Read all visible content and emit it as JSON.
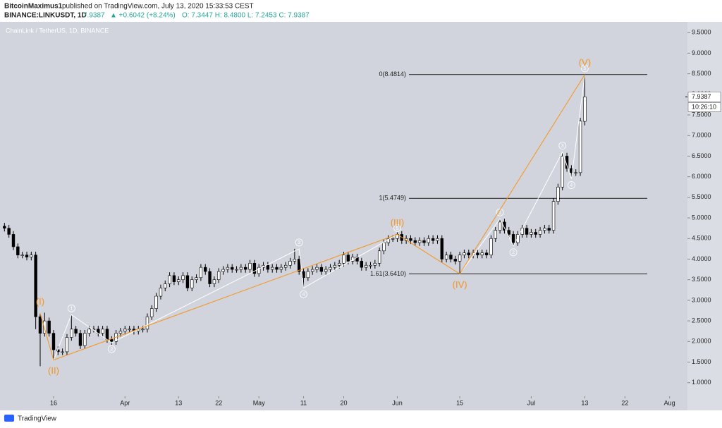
{
  "header": {
    "author": "BitcoinMaximus1",
    "published": "published on TradingView.com, July 13, 2020 15:33:53 CEST",
    "symbol": "BINANCE:LINKUSDT, 1D",
    "price": "7.9387",
    "change": "▲ +0.6042 (+8.24%)",
    "ohlc": "O: 7.3447  H: 8.4800  L: 7.2453  C: 7.9387"
  },
  "footer": {
    "brand": "TradingView"
  },
  "chart_data": {
    "type": "candlestick",
    "title": "ChainLink / TetherUS, 1D, BINANCE",
    "up_color": "#ffffff",
    "down_color": "#000000",
    "wave_color": "#f7931a",
    "subwave_color": "#ffffff",
    "background": "#d1d4dc",
    "xlim": [
      "03-04",
      "08-05"
    ],
    "xticks": [
      {
        "value": "03-16",
        "label": "16"
      },
      {
        "value": "04-01",
        "label": "Apr"
      },
      {
        "value": "04-13",
        "label": "13"
      },
      {
        "value": "04-22",
        "label": "22"
      },
      {
        "value": "05-01",
        "label": "May"
      },
      {
        "value": "05-11",
        "label": "11"
      },
      {
        "value": "05-20",
        "label": "20"
      },
      {
        "value": "06-01",
        "label": "Jun"
      },
      {
        "value": "06-15",
        "label": "15"
      },
      {
        "value": "07-01",
        "label": "Jul"
      },
      {
        "value": "07-13",
        "label": "13"
      },
      {
        "value": "07-22",
        "label": "22"
      },
      {
        "value": "08-01",
        "label": "Aug"
      }
    ],
    "ylim": [
      0.67,
      9.76
    ],
    "yticks": [
      {
        "value": 1,
        "label": "1.0000"
      },
      {
        "value": 1.5,
        "label": "1.5000"
      },
      {
        "value": 2,
        "label": "2.0000"
      },
      {
        "value": 2.5,
        "label": "2.5000"
      },
      {
        "value": 3,
        "label": "3.0000"
      },
      {
        "value": 3.5,
        "label": "3.5000"
      },
      {
        "value": 4,
        "label": "4.0000"
      },
      {
        "value": 4.5,
        "label": "4.5000"
      },
      {
        "value": 5,
        "label": "5.0000"
      },
      {
        "value": 5.5,
        "label": "5.5000"
      },
      {
        "value": 6,
        "label": "6.0000"
      },
      {
        "value": 6.5,
        "label": "6.5000"
      },
      {
        "value": 7,
        "label": "7.0000"
      },
      {
        "value": 7.5,
        "label": "7.5000"
      },
      {
        "value": 8,
        "label": "8.0000"
      },
      {
        "value": 8.5,
        "label": "8.5000"
      },
      {
        "value": 9,
        "label": "9.0000"
      },
      {
        "value": 9.5,
        "label": "9.5000"
      }
    ],
    "x": [
      "03-05",
      "03-06",
      "03-07",
      "03-08",
      "03-09",
      "03-10",
      "03-11",
      "03-12",
      "03-13",
      "03-14",
      "03-15",
      "03-16",
      "03-17",
      "03-18",
      "03-19",
      "03-20",
      "03-21",
      "03-22",
      "03-23",
      "03-24",
      "03-25",
      "03-26",
      "03-27",
      "03-28",
      "03-29",
      "03-30",
      "03-31",
      "04-01",
      "04-02",
      "04-03",
      "04-04",
      "04-05",
      "04-06",
      "04-07",
      "04-08",
      "04-09",
      "04-10",
      "04-11",
      "04-12",
      "04-13",
      "04-14",
      "04-15",
      "04-16",
      "04-17",
      "04-18",
      "04-19",
      "04-20",
      "04-21",
      "04-22",
      "04-23",
      "04-24",
      "04-25",
      "04-26",
      "04-27",
      "04-28",
      "04-29",
      "04-30",
      "05-01",
      "05-02",
      "05-03",
      "05-04",
      "05-05",
      "05-06",
      "05-07",
      "05-08",
      "05-09",
      "05-10",
      "05-11",
      "05-12",
      "05-13",
      "05-14",
      "05-15",
      "05-16",
      "05-17",
      "05-18",
      "05-19",
      "05-20",
      "05-21",
      "05-22",
      "05-23",
      "05-24",
      "05-25",
      "05-26",
      "05-27",
      "05-28",
      "05-29",
      "05-30",
      "05-31",
      "06-01",
      "06-02",
      "06-03",
      "06-04",
      "06-05",
      "06-06",
      "06-07",
      "06-08",
      "06-09",
      "06-10",
      "06-11",
      "06-12",
      "06-13",
      "06-14",
      "06-15",
      "06-16",
      "06-17",
      "06-18",
      "06-19",
      "06-20",
      "06-21",
      "06-22",
      "06-23",
      "06-24",
      "06-25",
      "06-26",
      "06-27",
      "06-28",
      "06-29",
      "06-30",
      "07-01",
      "07-02",
      "07-03",
      "07-04",
      "07-05",
      "07-06",
      "07-07",
      "07-08",
      "07-09",
      "07-10",
      "07-11",
      "07-12",
      "07-13"
    ],
    "open": [
      4.8,
      4.75,
      4.6,
      4.3,
      4.1,
      4.1,
      4.05,
      4.1,
      2.6,
      2.2,
      2.5,
      2.2,
      1.8,
      1.75,
      1.75,
      2.1,
      2.3,
      2.2,
      1.9,
      2.2,
      2.3,
      2.3,
      2.2,
      2.3,
      2.05,
      2.0,
      2.2,
      2.25,
      2.3,
      2.3,
      2.25,
      2.3,
      2.3,
      2.6,
      2.8,
      3.1,
      3.3,
      3.4,
      3.6,
      3.45,
      3.5,
      3.6,
      3.3,
      3.5,
      3.55,
      3.8,
      3.7,
      3.4,
      3.5,
      3.7,
      3.75,
      3.8,
      3.75,
      3.75,
      3.8,
      3.75,
      3.9,
      3.65,
      3.8,
      3.85,
      3.75,
      3.8,
      3.75,
      3.8,
      3.85,
      3.95,
      4.0,
      3.7,
      3.55,
      3.7,
      3.75,
      3.8,
      3.7,
      3.75,
      3.8,
      3.85,
      3.9,
      4.1,
      3.95,
      4.05,
      3.95,
      3.8,
      3.85,
      3.85,
      3.9,
      4.2,
      4.4,
      4.5,
      4.5,
      4.6,
      4.45,
      4.5,
      4.45,
      4.4,
      4.45,
      4.4,
      4.5,
      4.45,
      4.5,
      4.0,
      4.1,
      4.0,
      3.95,
      4.1,
      4.15,
      4.1,
      4.15,
      4.1,
      4.15,
      4.1,
      4.5,
      4.7,
      4.9,
      4.7,
      4.6,
      4.4,
      4.6,
      4.75,
      4.6,
      4.65,
      4.6,
      4.7,
      4.75,
      4.7,
      5.4,
      5.75,
      6.5,
      6.2,
      6.1,
      6.1,
      7.3447
    ],
    "high": [
      4.88,
      4.83,
      4.68,
      4.38,
      4.18,
      4.18,
      4.18,
      4.18,
      2.68,
      2.7,
      2.58,
      2.28,
      1.88,
      1.83,
      2.18,
      2.65,
      2.38,
      2.28,
      2.28,
      2.38,
      2.38,
      2.38,
      2.38,
      2.38,
      2.13,
      2.28,
      2.33,
      2.38,
      2.38,
      2.38,
      2.38,
      2.38,
      2.68,
      2.88,
      3.18,
      3.38,
      3.48,
      3.68,
      3.68,
      3.58,
      3.68,
      3.68,
      3.58,
      3.63,
      3.88,
      3.88,
      3.78,
      3.58,
      3.78,
      3.83,
      3.88,
      3.88,
      3.83,
      3.88,
      3.88,
      3.98,
      3.98,
      3.88,
      3.93,
      3.93,
      3.88,
      3.88,
      3.88,
      3.93,
      4.03,
      4.25,
      4.08,
      3.78,
      3.78,
      3.83,
      3.88,
      3.88,
      3.83,
      3.88,
      3.93,
      3.98,
      4.18,
      4.18,
      4.13,
      4.13,
      4.03,
      3.93,
      3.93,
      3.98,
      4.28,
      4.48,
      4.58,
      4.58,
      4.65,
      4.68,
      4.58,
      4.58,
      4.53,
      4.53,
      4.53,
      4.58,
      4.58,
      4.58,
      4.58,
      4.18,
      4.18,
      4.08,
      4.18,
      4.23,
      4.23,
      4.23,
      4.23,
      4.23,
      4.23,
      4.58,
      4.78,
      4.98,
      4.98,
      4.78,
      4.68,
      4.68,
      4.83,
      4.83,
      4.73,
      4.73,
      4.78,
      4.83,
      4.83,
      5.48,
      5.83,
      6.6,
      6.58,
      6.28,
      6.18,
      7.43,
      8.48
    ],
    "low": [
      4.67,
      4.52,
      4.22,
      4.02,
      4.02,
      3.97,
      3.97,
      2.3,
      1.4,
      2.12,
      2.12,
      1.55,
      1.67,
      1.67,
      1.67,
      2.02,
      2.12,
      1.82,
      1.82,
      2.12,
      2.22,
      2.12,
      2.12,
      1.97,
      1.92,
      1.92,
      2.12,
      2.17,
      2.22,
      2.17,
      2.17,
      2.22,
      2.22,
      2.52,
      2.72,
      3.02,
      3.22,
      3.32,
      3.37,
      3.37,
      3.42,
      3.22,
      3.22,
      3.42,
      3.47,
      3.62,
      3.32,
      3.32,
      3.42,
      3.62,
      3.67,
      3.67,
      3.67,
      3.67,
      3.67,
      3.67,
      3.57,
      3.57,
      3.72,
      3.67,
      3.67,
      3.67,
      3.67,
      3.72,
      3.77,
      3.87,
      3.62,
      3.3,
      3.47,
      3.62,
      3.67,
      3.62,
      3.62,
      3.67,
      3.72,
      3.77,
      3.82,
      3.87,
      3.87,
      3.87,
      3.72,
      3.72,
      3.77,
      3.77,
      3.82,
      4.12,
      4.32,
      4.42,
      4.42,
      4.37,
      4.37,
      4.37,
      4.32,
      4.32,
      4.32,
      4.32,
      4.37,
      4.37,
      3.92,
      3.92,
      3.92,
      3.87,
      3.641,
      4.02,
      4.02,
      4.02,
      4.02,
      4.02,
      4.02,
      4.02,
      4.42,
      4.62,
      4.62,
      4.52,
      4.32,
      4.32,
      4.52,
      4.52,
      4.52,
      4.52,
      4.52,
      4.62,
      4.62,
      4.62,
      5.32,
      5.67,
      6.12,
      5.95,
      6.02,
      6.02,
      7.2453
    ],
    "close": [
      4.75,
      4.6,
      4.3,
      4.1,
      4.1,
      4.05,
      4.1,
      2.6,
      2.2,
      2.5,
      2.2,
      1.8,
      1.75,
      1.75,
      2.1,
      2.3,
      2.2,
      1.9,
      2.2,
      2.3,
      2.3,
      2.2,
      2.3,
      2.05,
      2.0,
      2.2,
      2.25,
      2.3,
      2.3,
      2.25,
      2.3,
      2.3,
      2.6,
      2.8,
      3.1,
      3.3,
      3.4,
      3.6,
      3.45,
      3.5,
      3.6,
      3.3,
      3.5,
      3.55,
      3.8,
      3.7,
      3.4,
      3.5,
      3.7,
      3.75,
      3.8,
      3.75,
      3.75,
      3.8,
      3.75,
      3.9,
      3.65,
      3.8,
      3.85,
      3.75,
      3.8,
      3.75,
      3.8,
      3.85,
      3.95,
      4.0,
      3.7,
      3.55,
      3.7,
      3.75,
      3.8,
      3.7,
      3.75,
      3.8,
      3.85,
      3.9,
      4.1,
      3.95,
      4.05,
      3.95,
      3.8,
      3.85,
      3.85,
      3.9,
      4.2,
      4.4,
      4.5,
      4.5,
      4.6,
      4.45,
      4.5,
      4.45,
      4.4,
      4.45,
      4.4,
      4.5,
      4.45,
      4.5,
      4.0,
      4.1,
      4.0,
      3.95,
      4.1,
      4.15,
      4.1,
      4.15,
      4.1,
      4.15,
      4.1,
      4.5,
      4.7,
      4.9,
      4.7,
      4.6,
      4.4,
      4.6,
      4.75,
      4.6,
      4.65,
      4.6,
      4.7,
      4.75,
      4.7,
      5.4,
      5.75,
      6.5,
      6.2,
      6.1,
      6.1,
      7.35,
      7.9387
    ],
    "levels": [
      {
        "value": 8.4814,
        "label": "0(8.4814)"
      },
      {
        "value": 5.4749,
        "label": "1(5.4749)"
      },
      {
        "value": 3.641,
        "label": "1.61(3.6410)"
      }
    ],
    "last_price": {
      "value": 7.9387,
      "label": "7.9387"
    },
    "countdown": "10:26:10",
    "waves": {
      "labels": [
        "(I)",
        "(II)",
        "(III)",
        "(IV)",
        "(V)"
      ],
      "x": [
        "03-13",
        "03-16",
        "06-01",
        "06-15",
        "07-13"
      ],
      "y": [
        2.68,
        1.55,
        4.6,
        3.641,
        8.48
      ]
    },
    "subwaves": [
      {
        "labels": [
          null,
          "1",
          "2",
          "3",
          "4",
          "5"
        ],
        "x": [
          "03-16",
          "03-20",
          "03-29",
          "05-10",
          "05-11",
          "06-01"
        ],
        "y": [
          1.55,
          2.65,
          1.97,
          4.25,
          3.3,
          4.6
        ]
      },
      {
        "labels": [
          null,
          "1",
          "2",
          "3",
          "4",
          "5"
        ],
        "x": [
          "06-15",
          "06-24",
          "06-27",
          "07-08",
          "07-10",
          "07-13"
        ],
        "y": [
          3.641,
          4.98,
          4.32,
          6.6,
          5.95,
          8.48
        ]
      }
    ]
  }
}
